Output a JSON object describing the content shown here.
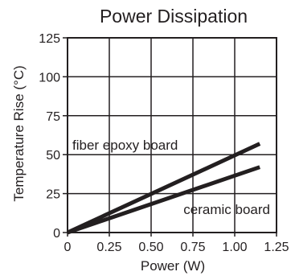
{
  "chart_data": {
    "type": "line",
    "title": "Power Dissipation",
    "xlabel": "Power (W)",
    "ylabel": "Temperature Rise (°C)",
    "xlim": [
      0,
      1.25
    ],
    "ylim": [
      0,
      125
    ],
    "x_ticks": [
      0,
      0.25,
      0.5,
      0.75,
      1.0,
      1.25
    ],
    "x_tick_labels": [
      "0",
      "0.25",
      "0.50",
      "0.75",
      "1.00",
      "1.25"
    ],
    "y_ticks": [
      0,
      25,
      50,
      75,
      100,
      125
    ],
    "y_tick_labels": [
      "0",
      "25",
      "50",
      "75",
      "100",
      "125"
    ],
    "grid": true,
    "series": [
      {
        "name": "fiber epoxy board",
        "x": [
          0,
          1.15
        ],
        "y": [
          0,
          57
        ],
        "color": "#231f20"
      },
      {
        "name": "ceramic board",
        "x": [
          0,
          1.15
        ],
        "y": [
          0,
          42
        ],
        "color": "#231f20"
      }
    ]
  }
}
